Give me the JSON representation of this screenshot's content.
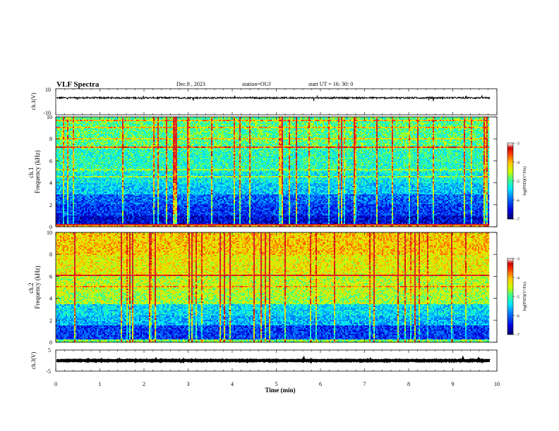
{
  "header": {
    "title": "VLF Spectra",
    "date": "Dec.8 , 2023",
    "station": "station=OUJ",
    "start_time": "start UT = 16: 30: 0"
  },
  "chart_data": [
    {
      "type": "line",
      "panel": "ch1-waveform",
      "ylabel": "ch.1(V)",
      "ylim": [
        -10,
        10
      ],
      "y_ticks": [
        10,
        -10
      ],
      "xlim": [
        0,
        10
      ],
      "baseline": 3.0,
      "amplitude": 0.6,
      "color": "#000000"
    },
    {
      "type": "heatmap",
      "panel": "ch1-spectrogram",
      "ylabel": "ch.1\nFrequency (kHz)",
      "ylabel_lines": [
        "ch.1",
        "Frequency (kHz)"
      ],
      "ylim": [
        0,
        10
      ],
      "y_ticks": [
        "0",
        "2",
        "4",
        "6",
        "8",
        "10"
      ],
      "xlim": [
        0,
        10
      ],
      "data_end_min": 9.8,
      "colorbar": {
        "label": "log(PSD)(V²/Hz)",
        "ticks": [
          "-3",
          "-4",
          "-5",
          "-6",
          "-7"
        ],
        "range": [
          -7,
          -3
        ]
      },
      "band_levels": [
        {
          "from": 0.0,
          "to": 0.3,
          "level": -4.0
        },
        {
          "from": 0.3,
          "to": 1.0,
          "level": -6.5
        },
        {
          "from": 1.0,
          "to": 2.0,
          "level": -6.2
        },
        {
          "from": 2.0,
          "to": 3.0,
          "level": -6.0
        },
        {
          "from": 3.0,
          "to": 4.0,
          "level": -5.5
        },
        {
          "from": 4.0,
          "to": 5.0,
          "level": -5.3
        },
        {
          "from": 5.0,
          "to": 7.0,
          "level": -5.1
        },
        {
          "from": 7.0,
          "to": 10.0,
          "level": -4.9
        }
      ]
    },
    {
      "type": "heatmap",
      "panel": "ch2-spectrogram",
      "ylabel": "ch.2\nFrequency (kHz)",
      "ylabel_lines": [
        "ch.2",
        "Frequency (kHz)"
      ],
      "ylim": [
        0,
        10
      ],
      "y_ticks": [
        "0",
        "2",
        "4",
        "6",
        "8",
        "10"
      ],
      "xlim": [
        0,
        10
      ],
      "data_end_min": 9.8,
      "colorbar": {
        "label": "log(PSD)(V²/Hz)",
        "ticks": [
          "-3",
          "-4",
          "-5",
          "-6",
          "-7"
        ],
        "range": [
          -7,
          -3
        ]
      },
      "band_levels": [
        {
          "from": 0.0,
          "to": 0.3,
          "level": -4.8
        },
        {
          "from": 0.3,
          "to": 1.5,
          "level": -6.2
        },
        {
          "from": 1.5,
          "to": 2.5,
          "level": -5.6
        },
        {
          "from": 2.5,
          "to": 3.5,
          "level": -5.4
        },
        {
          "from": 3.5,
          "to": 4.5,
          "level": -4.6
        },
        {
          "from": 4.5,
          "to": 6.0,
          "level": -4.5
        },
        {
          "from": 6.0,
          "to": 8.0,
          "level": -4.3
        },
        {
          "from": 8.0,
          "to": 10.0,
          "level": -4.1
        }
      ]
    },
    {
      "type": "line",
      "panel": "ch3-waveform",
      "ylabel": "ch.3(V)",
      "ylim": [
        -5,
        5
      ],
      "y_ticks": [
        5,
        -5
      ],
      "xlim": [
        0,
        10
      ],
      "baseline": 0,
      "amplitude": 0.15,
      "color": "#000000"
    }
  ],
  "x_axis": {
    "label": "Time (min)",
    "ticks": [
      "0",
      "1",
      "2",
      "3",
      "4",
      "5",
      "6",
      "7",
      "8",
      "9",
      "10"
    ],
    "range": [
      0,
      10
    ]
  }
}
